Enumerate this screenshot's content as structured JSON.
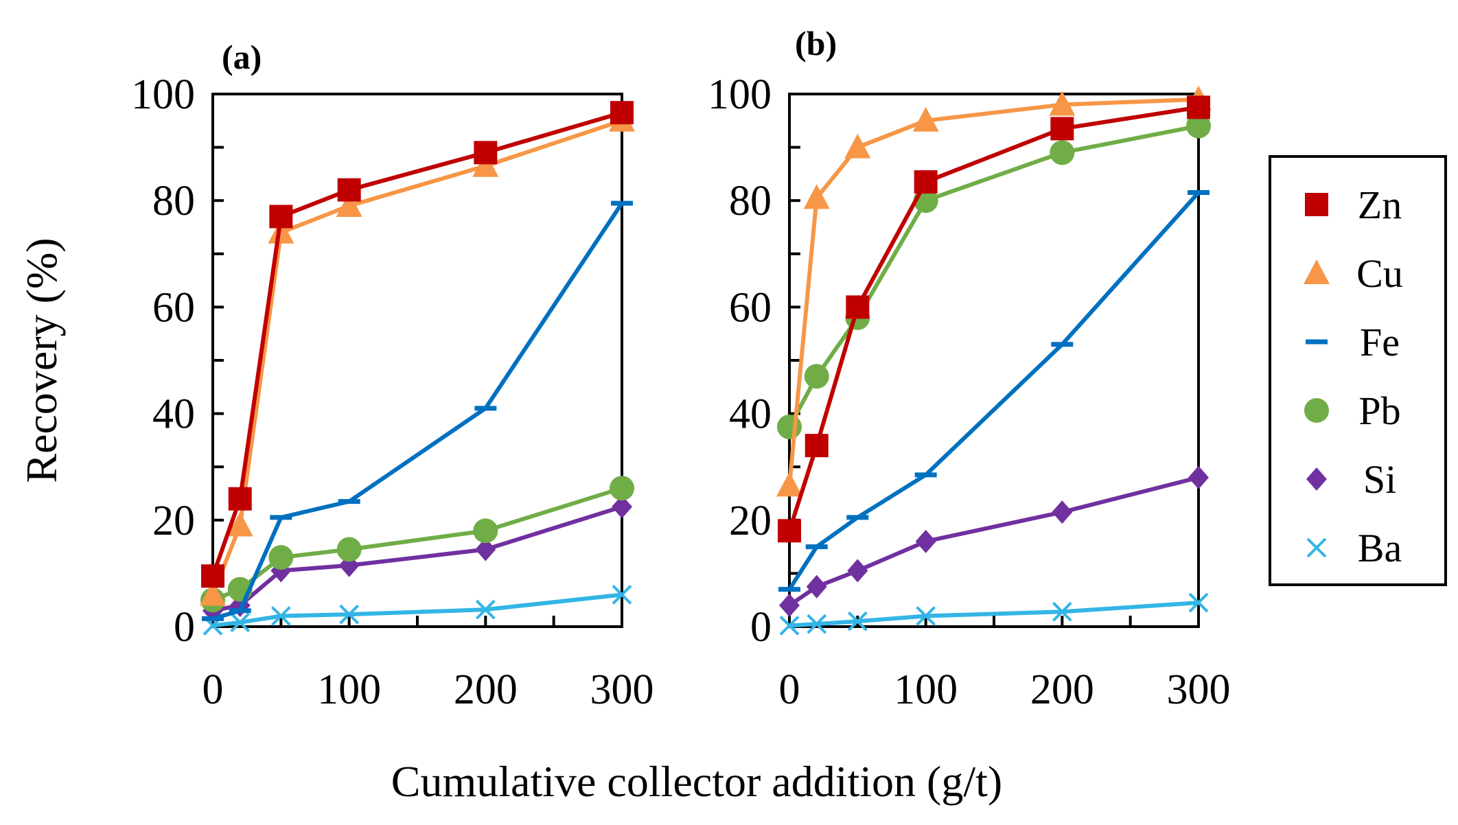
{
  "figure": {
    "xlabel": "Cumulative collector addition (g/t)",
    "ylabel": "Recovery (%)"
  },
  "legend": {
    "position": "right",
    "items": [
      {
        "label": "Zn",
        "color": "#C00000",
        "marker": "square"
      },
      {
        "label": "Cu",
        "color": "#F79646",
        "marker": "triangle"
      },
      {
        "label": "Fe",
        "color": "#0070C0",
        "marker": "dash"
      },
      {
        "label": "Pb",
        "color": "#70AD47",
        "marker": "circle"
      },
      {
        "label": "Si",
        "color": "#7030A0",
        "marker": "diamond"
      },
      {
        "label": "Ba",
        "color": "#33B5E5",
        "marker": "x"
      }
    ]
  },
  "chart_data": [
    {
      "type": "line",
      "panel": "(a)",
      "xlabel": "Cumulative collector addition (g/t)",
      "ylabel": "Recovery (%)",
      "xlim": [
        0,
        300
      ],
      "ylim": [
        0,
        100
      ],
      "xticks": [
        0,
        100,
        200,
        300
      ],
      "yticks": [
        0,
        20,
        40,
        60,
        80,
        100
      ],
      "grid": false,
      "x": [
        0,
        20,
        50,
        100,
        200,
        300
      ],
      "series": [
        {
          "name": "Zn",
          "values": [
            9.5,
            24,
            77,
            82,
            89,
            96.5
          ]
        },
        {
          "name": "Cu",
          "values": [
            6,
            19,
            74,
            79,
            86.5,
            95
          ]
        },
        {
          "name": "Fe",
          "values": [
            1.5,
            3,
            20.5,
            23.5,
            41,
            79.5
          ]
        },
        {
          "name": "Pb",
          "values": [
            5,
            7,
            13,
            14.5,
            18,
            26
          ]
        },
        {
          "name": "Si",
          "values": [
            3,
            4,
            10.5,
            11.5,
            14.5,
            22.5
          ]
        },
        {
          "name": "Ba",
          "values": [
            0.2,
            0.8,
            2,
            2.3,
            3.2,
            6
          ]
        }
      ]
    },
    {
      "type": "line",
      "panel": "(b)",
      "xlabel": "Cumulative collector addition (g/t)",
      "ylabel": "Recovery (%)",
      "xlim": [
        0,
        300
      ],
      "ylim": [
        0,
        100
      ],
      "xticks": [
        0,
        100,
        200,
        300
      ],
      "yticks": [
        0,
        20,
        40,
        60,
        80,
        100
      ],
      "grid": false,
      "x": [
        0,
        20,
        50,
        100,
        200,
        300
      ],
      "series": [
        {
          "name": "Zn",
          "values": [
            18,
            34,
            60,
            83.5,
            93.5,
            97.5
          ]
        },
        {
          "name": "Cu",
          "values": [
            26.5,
            80.5,
            90,
            95,
            98,
            99
          ]
        },
        {
          "name": "Fe",
          "values": [
            7,
            15,
            20.5,
            28.5,
            53,
            81.5
          ]
        },
        {
          "name": "Pb",
          "values": [
            37.5,
            47,
            58,
            80,
            89,
            94
          ]
        },
        {
          "name": "Si",
          "values": [
            4,
            7.5,
            10.5,
            16,
            21.5,
            28
          ]
        },
        {
          "name": "Ba",
          "values": [
            0.2,
            0.5,
            1,
            2,
            2.8,
            4.5
          ]
        }
      ]
    }
  ]
}
